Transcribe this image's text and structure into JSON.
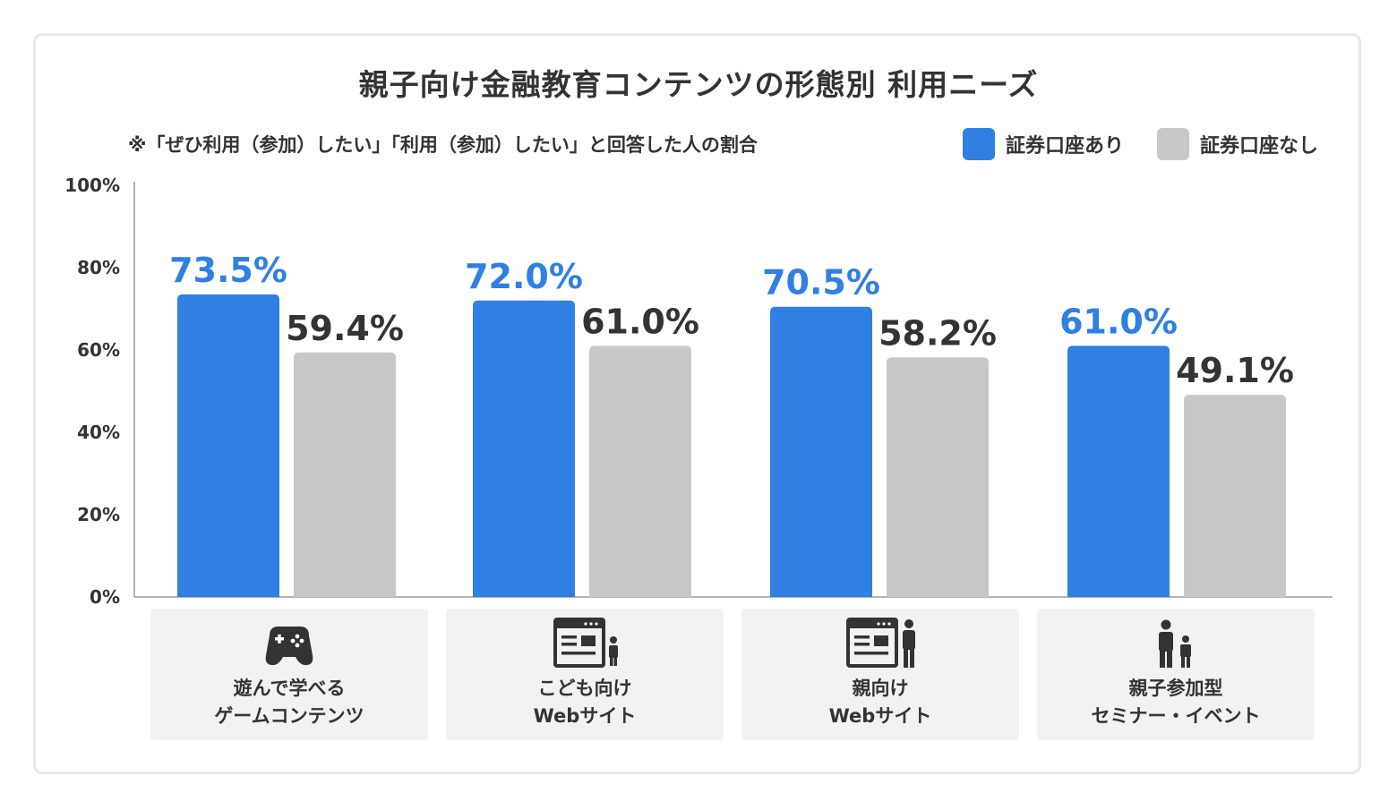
{
  "colors": {
    "series_with_account": "#2f80e2",
    "series_without_account": "#c8c8c8",
    "axis": "#999999",
    "text": "#333333"
  },
  "chart_data": {
    "type": "bar",
    "title": "親子向け金融教育コンテンツの形態別 利用ニーズ",
    "note": "※「ぜひ利用（参加）したい」「利用（参加）したい」と回答した人の割合",
    "categories": [
      [
        "遊んで学べる",
        "ゲームコンテンツ"
      ],
      [
        "こども向け",
        "Webサイト"
      ],
      [
        "親向け",
        "Webサイト"
      ],
      [
        "親子参加型",
        "セミナー・イベント"
      ]
    ],
    "category_icons": [
      "gamepad-icon",
      "web-page-with-child-icon",
      "web-page-with-adult-icon",
      "parent-and-child-icon"
    ],
    "series": [
      {
        "name": "証券口座あり",
        "values": [
          73.5,
          72.0,
          70.5,
          61.0
        ],
        "labels": [
          "73.5%",
          "72.0%",
          "70.5%",
          "61.0%"
        ]
      },
      {
        "name": "証券口座なし",
        "values": [
          59.4,
          61.0,
          58.2,
          49.1
        ],
        "labels": [
          "59.4%",
          "61.0%",
          "58.2%",
          "49.1%"
        ]
      }
    ],
    "ylim": [
      0,
      100
    ],
    "yticks": [
      0,
      20,
      40,
      60,
      80,
      100
    ],
    "ytick_labels": [
      "0%",
      "20%",
      "40%",
      "60%",
      "80%",
      "100%"
    ],
    "legend_position": "top-right",
    "grid": false
  }
}
